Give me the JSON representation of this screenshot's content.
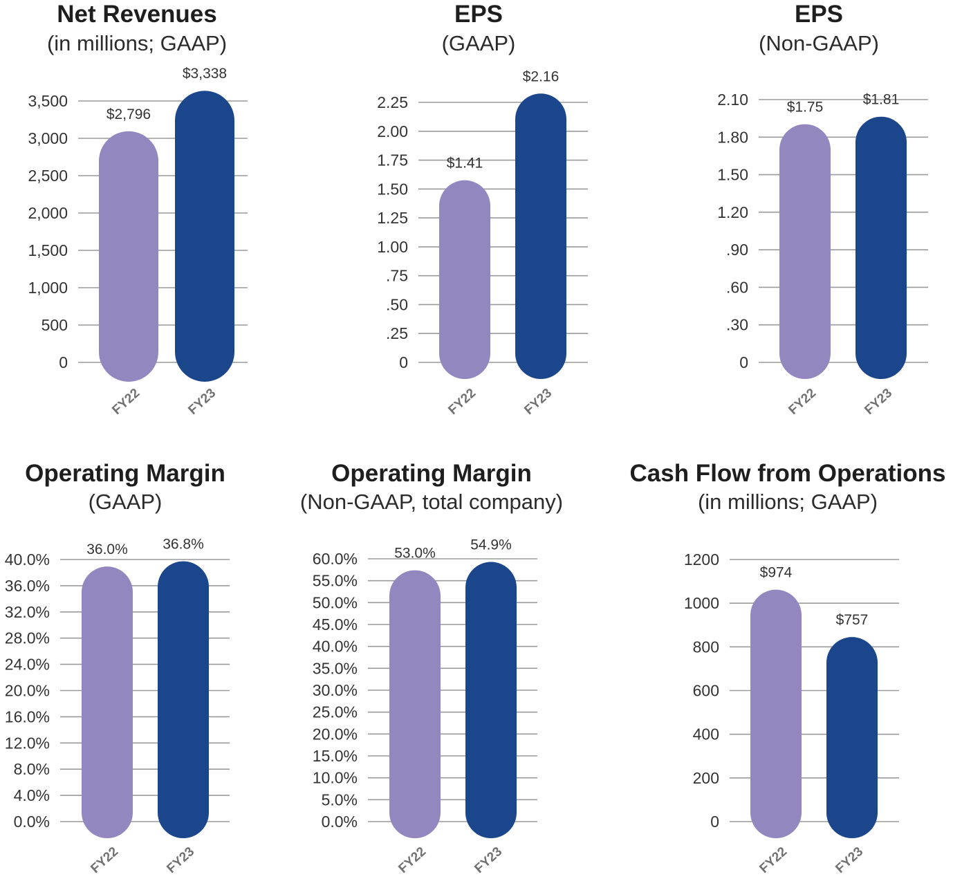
{
  "colors": {
    "fy22_bar": "#9387c0",
    "fy23_bar": "#1c468c",
    "grid": "#9a9a9a"
  },
  "chart_data": [
    {
      "type": "bar",
      "title": "Net Revenues",
      "subtitle": "(in millions; GAAP)",
      "categories": [
        "FY22",
        "FY23"
      ],
      "values": [
        2796,
        3338
      ],
      "data_labels": [
        "$2,796",
        "$3,338"
      ],
      "yticks": [
        0,
        500,
        1000,
        1500,
        2000,
        2500,
        3000,
        3500
      ],
      "ytick_labels": [
        "0",
        "500",
        "1,000",
        "1,500",
        "2,000",
        "2,500",
        "3,000",
        "3,500"
      ],
      "ylim": [
        0,
        3500
      ],
      "grid": true
    },
    {
      "type": "bar",
      "title": "EPS",
      "subtitle": "(GAAP)",
      "categories": [
        "FY22",
        "FY23"
      ],
      "values": [
        1.41,
        2.16
      ],
      "data_labels": [
        "$1.41",
        "$2.16"
      ],
      "yticks": [
        0,
        0.25,
        0.5,
        0.75,
        1.0,
        1.25,
        1.5,
        1.75,
        2.0,
        2.25
      ],
      "ytick_labels": [
        "0",
        ".25",
        ".50",
        ".75",
        "1.00",
        "1.25",
        "1.50",
        "1.75",
        "2.00",
        "2.25"
      ],
      "ylim": [
        0,
        2.25
      ],
      "grid": true
    },
    {
      "type": "bar",
      "title": "EPS",
      "subtitle": "(Non-GAAP)",
      "categories": [
        "FY22",
        "FY23"
      ],
      "values": [
        1.75,
        1.81
      ],
      "data_labels": [
        "$1.75",
        "$1.81"
      ],
      "yticks": [
        0,
        0.3,
        0.6,
        0.9,
        1.2,
        1.5,
        1.8,
        2.1
      ],
      "ytick_labels": [
        "0",
        ".30",
        ".60",
        ".90",
        "1.20",
        "1.50",
        "1.80",
        "2.10"
      ],
      "ylim": [
        0,
        2.1
      ],
      "grid": true
    },
    {
      "type": "bar",
      "title": "Operating Margin",
      "subtitle": "(GAAP)",
      "categories": [
        "FY22",
        "FY23"
      ],
      "values": [
        36.0,
        36.8
      ],
      "data_labels": [
        "36.0%",
        "36.8%"
      ],
      "yticks": [
        0,
        4,
        8,
        12,
        16,
        20,
        24,
        28,
        32,
        36,
        40
      ],
      "ytick_labels": [
        "0.0%",
        "4.0%",
        "8.0%",
        "12.0%",
        "16.0%",
        "20.0%",
        "24.0%",
        "28.0%",
        "32.0%",
        "36.0%",
        "40.0%"
      ],
      "ylim": [
        0,
        40
      ],
      "grid": true
    },
    {
      "type": "bar",
      "title": "Operating Margin",
      "subtitle": "(Non-GAAP, total company)",
      "categories": [
        "FY22",
        "FY23"
      ],
      "values": [
        53.0,
        54.9
      ],
      "data_labels": [
        "53.0%",
        "54.9%"
      ],
      "yticks": [
        0,
        5,
        10,
        15,
        20,
        25,
        30,
        35,
        40,
        45,
        50,
        55,
        60
      ],
      "ytick_labels": [
        "0.0%",
        "5.0%",
        "10.0%",
        "15.0%",
        "20.0%",
        "25.0%",
        "30.0%",
        "35.0%",
        "40.0%",
        "45.0%",
        "50.0%",
        "55.0%",
        "60.0%"
      ],
      "ylim": [
        0,
        60
      ],
      "grid": true
    },
    {
      "type": "bar",
      "title": "Cash Flow from Operations",
      "subtitle": "(in millions; GAAP)",
      "categories": [
        "FY22",
        "FY23"
      ],
      "values": [
        974,
        757
      ],
      "data_labels": [
        "$974",
        "$757"
      ],
      "yticks": [
        0,
        200,
        400,
        600,
        800,
        1000,
        1200
      ],
      "ytick_labels": [
        "0",
        "200",
        "400",
        "600",
        "800",
        "1000",
        "1200"
      ],
      "ylim": [
        0,
        1200
      ],
      "grid": true
    }
  ]
}
